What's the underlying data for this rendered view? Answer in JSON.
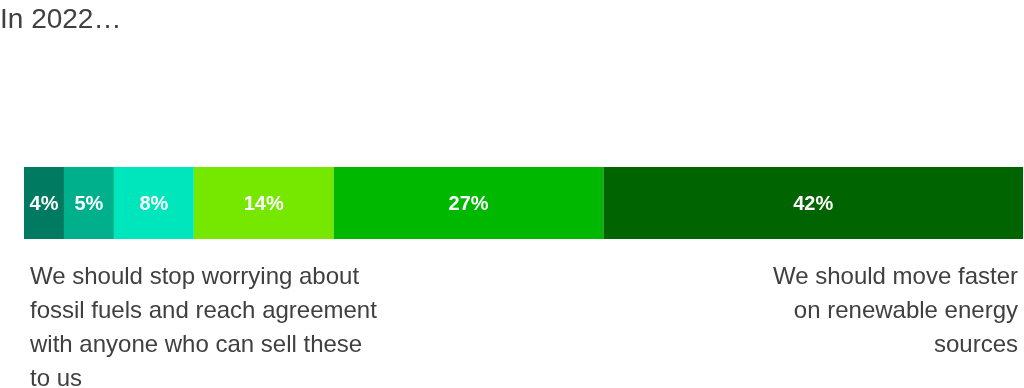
{
  "chart_data": {
    "type": "bar",
    "orientation": "horizontal",
    "stacked": true,
    "title": "In 2022…",
    "categories": [
      null
    ],
    "series": [
      {
        "color": "#007a60",
        "values": [
          4
        ],
        "value_labels": [
          "4%"
        ]
      },
      {
        "color": "#00b08c",
        "values": [
          5
        ],
        "value_labels": [
          "5%"
        ]
      },
      {
        "color": "#00e6bc",
        "values": [
          8
        ],
        "value_labels": [
          "8%"
        ]
      },
      {
        "color": "#76e800",
        "values": [
          14
        ],
        "value_labels": [
          "14%"
        ]
      },
      {
        "color": "#00b800",
        "values": [
          27
        ],
        "value_labels": [
          "27%"
        ]
      },
      {
        "color": "#006400",
        "values": [
          42
        ],
        "value_labels": [
          "42%"
        ]
      }
    ],
    "annotations": [
      "We should stop worrying about fossil fuels and reach agreement with anyone who  can sell these to us",
      "We should move faster on renewable energy sources"
    ]
  }
}
